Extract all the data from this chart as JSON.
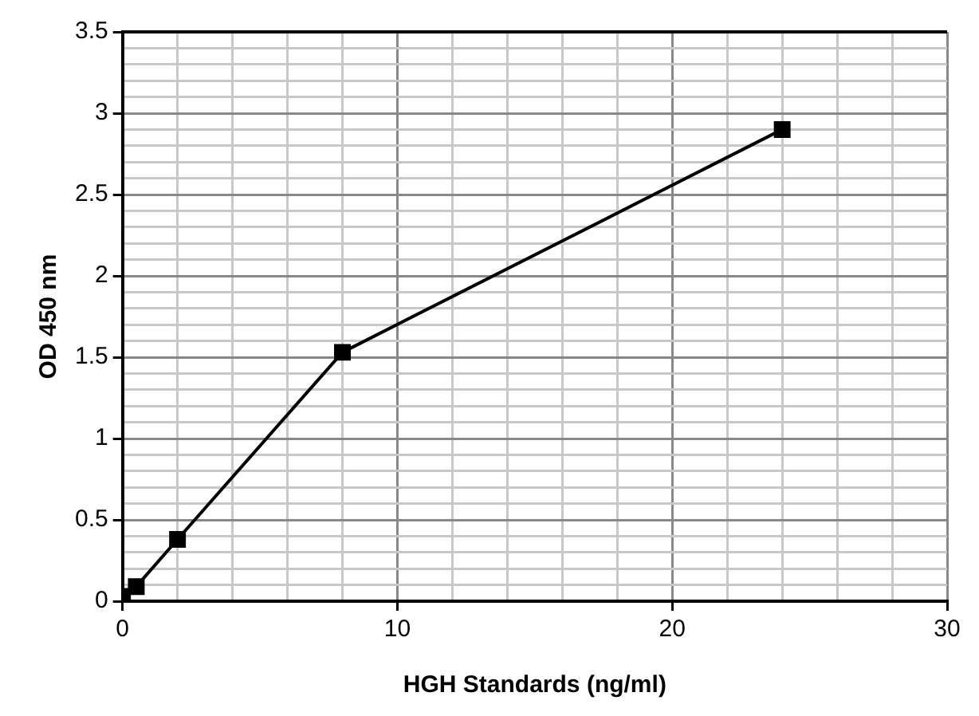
{
  "chart_data": {
    "type": "line",
    "xlabel": "HGH Standards (ng/ml)",
    "ylabel": "OD 450 nm",
    "x": [
      0,
      0.5,
      2,
      8,
      24
    ],
    "series": [
      {
        "color": "#000000",
        "values": [
          0.03,
          0.09,
          0.38,
          1.53,
          2.9
        ]
      }
    ],
    "xlim": [
      0,
      30
    ],
    "ylim": [
      0,
      3.5
    ],
    "xticks": [
      0,
      {
        "value": 2,
        "label": null
      },
      {
        "value": 4,
        "label": null
      },
      {
        "value": 6,
        "label": null
      },
      {
        "value": 8,
        "label": null
      },
      10,
      {
        "value": 12,
        "label": null
      },
      {
        "value": 14,
        "label": null
      },
      {
        "value": 16,
        "label": null
      },
      {
        "value": 18,
        "label": null
      },
      20,
      {
        "value": 22,
        "label": null
      },
      {
        "value": 24,
        "label": null
      },
      {
        "value": 26,
        "label": null
      },
      {
        "value": 28,
        "label": null
      },
      30
    ],
    "yticks": [
      0,
      {
        "value": 0.1,
        "label": null
      },
      {
        "value": 0.2,
        "label": null
      },
      {
        "value": 0.3,
        "label": null
      },
      {
        "value": 0.4,
        "label": null
      },
      0.5,
      {
        "value": 0.6,
        "label": null
      },
      {
        "value": 0.7,
        "label": null
      },
      {
        "value": 0.8,
        "label": null
      },
      {
        "value": 0.9,
        "label": null
      },
      1,
      {
        "value": 1.1,
        "label": null
      },
      {
        "value": 1.2,
        "label": null
      },
      {
        "value": 1.3,
        "label": null
      },
      {
        "value": 1.4,
        "label": null
      },
      1.5,
      {
        "value": 1.6,
        "label": null
      },
      {
        "value": 1.7,
        "label": null
      },
      {
        "value": 1.8,
        "label": null
      },
      {
        "value": 1.9,
        "label": null
      },
      2,
      {
        "value": 2.1,
        "label": null
      },
      {
        "value": 2.2,
        "label": null
      },
      {
        "value": 2.3,
        "label": null
      },
      {
        "value": 2.4,
        "label": null
      },
      2.5,
      {
        "value": 2.6,
        "label": null
      },
      {
        "value": 2.7,
        "label": null
      },
      {
        "value": 2.8,
        "label": null
      },
      {
        "value": 2.9,
        "label": null
      },
      3,
      {
        "value": 3.1,
        "label": null
      },
      {
        "value": 3.2,
        "label": null
      },
      {
        "value": 3.3,
        "label": null
      },
      {
        "value": 3.4,
        "label": null
      },
      3.5
    ],
    "grid": true,
    "legend": false,
    "marker": "square",
    "line_style": "solid"
  }
}
